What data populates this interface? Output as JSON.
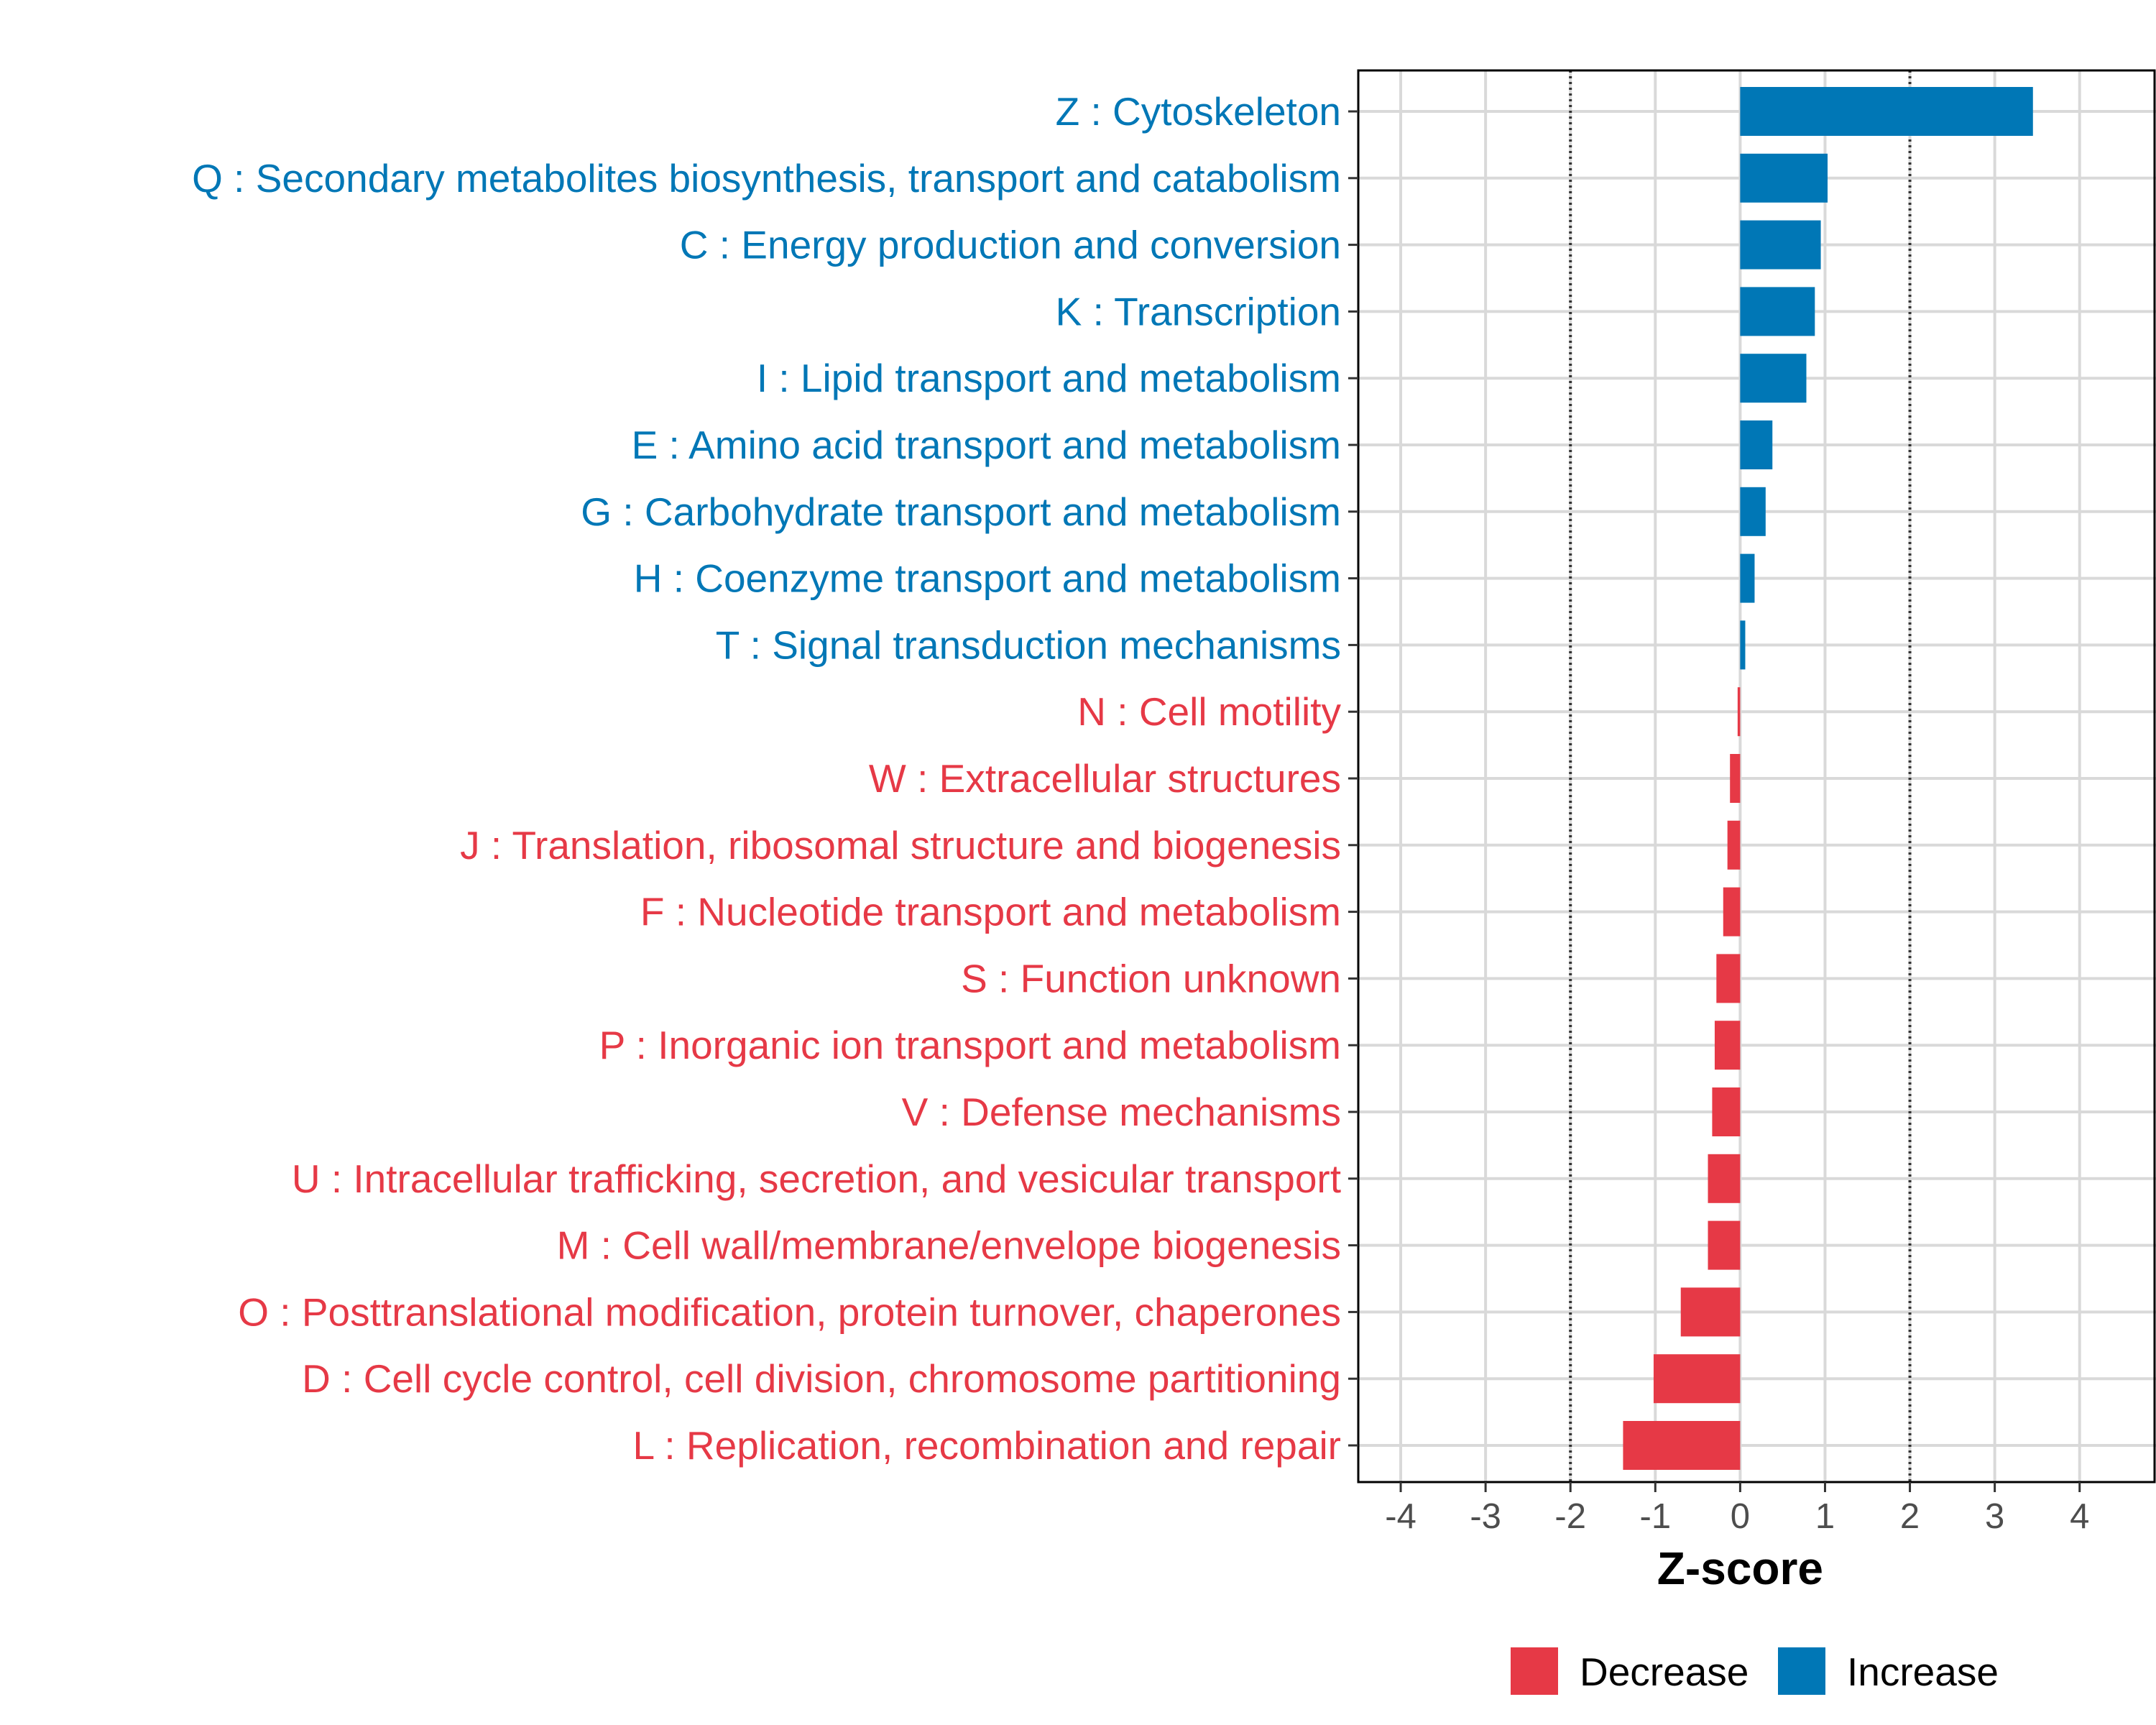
{
  "chart_data": {
    "type": "bar",
    "orientation": "horizontal",
    "title": "",
    "xlabel": "Z-score",
    "ylabel": "",
    "xlim": [
      -4.5,
      4.9
    ],
    "xticks": [
      -4,
      -3,
      -2,
      -1,
      0,
      1,
      2,
      3,
      4
    ],
    "xtick_labels": [
      "-4",
      "-3",
      "-2",
      "-1",
      "0",
      "1",
      "2",
      "3",
      "4"
    ],
    "reference_lines": [
      -2,
      2
    ],
    "grid": true,
    "legend_position": "bottom",
    "legend": [
      {
        "name": "Decrease",
        "color": "#E63946"
      },
      {
        "name": "Increase",
        "color": "#0077B6"
      }
    ],
    "categories": [
      "Z : Cytoskeleton",
      "Q : Secondary metabolites biosynthesis, transport and catabolism",
      "C : Energy production and conversion",
      "K : Transcription",
      "I : Lipid transport and metabolism",
      "E : Amino acid transport and metabolism",
      "G : Carbohydrate transport and metabolism",
      "H : Coenzyme transport and metabolism",
      "T : Signal transduction mechanisms",
      "N : Cell motility",
      "W : Extracellular structures",
      "J : Translation, ribosomal structure and biogenesis",
      "F : Nucleotide transport and metabolism",
      "S : Function unknown",
      "P : Inorganic ion transport and metabolism",
      "V : Defense mechanisms",
      "U : Intracellular trafficking, secretion, and vesicular transport",
      "M : Cell wall/membrane/envelope biogenesis",
      "O : Posttranslational modification, protein turnover, chaperones",
      "D : Cell cycle control, cell division, chromosome partitioning",
      "L : Replication, recombination and repair"
    ],
    "values": [
      3.45,
      1.03,
      0.95,
      0.88,
      0.78,
      0.38,
      0.3,
      0.17,
      0.06,
      -0.03,
      -0.12,
      -0.15,
      -0.2,
      -0.28,
      -0.3,
      -0.33,
      -0.38,
      -0.38,
      -0.7,
      -1.02,
      -1.38
    ],
    "series_of_each": [
      "Increase",
      "Increase",
      "Increase",
      "Increase",
      "Increase",
      "Increase",
      "Increase",
      "Increase",
      "Increase",
      "Decrease",
      "Decrease",
      "Decrease",
      "Decrease",
      "Decrease",
      "Decrease",
      "Decrease",
      "Decrease",
      "Decrease",
      "Decrease",
      "Decrease",
      "Decrease"
    ]
  }
}
